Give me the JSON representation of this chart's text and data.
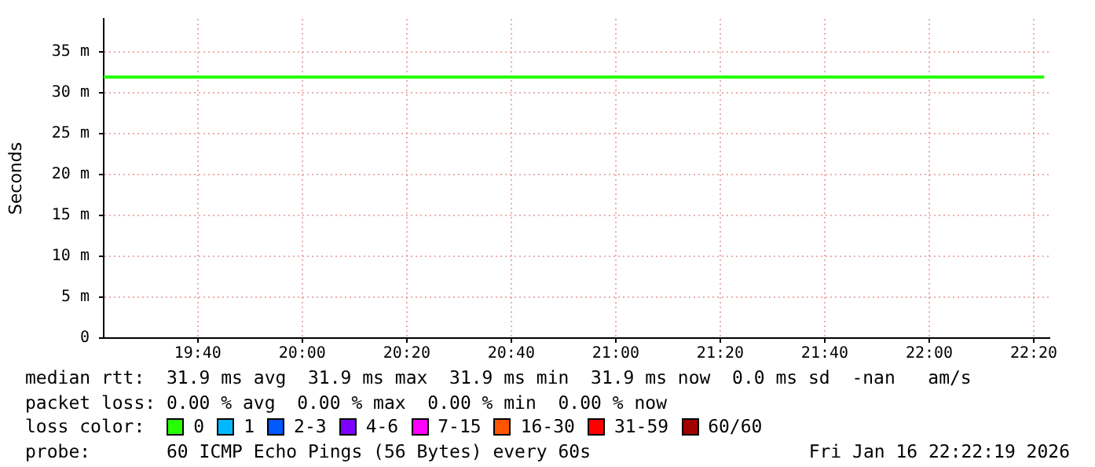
{
  "chart_data": {
    "type": "line",
    "ylabel": "Seconds",
    "legend_title": "loss color:",
    "legend": "bottom",
    "grid": true,
    "marker": "none",
    "line_style": "solid",
    "x": [
      "2026-01-16T19:22",
      "2026-01-16T22:22"
    ],
    "xlim": [
      "2026-01-16T19:22",
      "2026-01-16T22:23"
    ],
    "xticks": [
      {
        "value": "2026-01-16T19:40",
        "label": "19:40"
      },
      {
        "value": "2026-01-16T20:00",
        "label": "20:00"
      },
      {
        "value": "2026-01-16T20:20",
        "label": "20:20"
      },
      {
        "value": "2026-01-16T20:40",
        "label": "20:40"
      },
      {
        "value": "2026-01-16T21:00",
        "label": "21:00"
      },
      {
        "value": "2026-01-16T21:20",
        "label": "21:20"
      },
      {
        "value": "2026-01-16T21:40",
        "label": "21:40"
      },
      {
        "value": "2026-01-16T22:00",
        "label": "22:00"
      },
      {
        "value": "2026-01-16T22:20",
        "label": "22:20"
      }
    ],
    "ylim": [
      0,
      39
    ],
    "yticks": [
      0,
      {
        "value": 5,
        "label": "5 m"
      },
      {
        "value": 10,
        "label": "10 m"
      },
      {
        "value": 15,
        "label": "15 m"
      },
      {
        "value": 20,
        "label": "20 m"
      },
      {
        "value": 25,
        "label": "25 m"
      },
      {
        "value": 30,
        "label": "30 m"
      },
      {
        "value": 35,
        "label": "35 m"
      }
    ],
    "series": [
      {
        "name": "0",
        "color": "#26ff00",
        "values": [
          31.9,
          31.9
        ]
      },
      {
        "name": "1",
        "color": "#00b8ff",
        "values": [
          null,
          null
        ]
      },
      {
        "name": "2-3",
        "color": "#0059ff",
        "values": [
          null,
          null
        ]
      },
      {
        "name": "4-6",
        "color": "#7e00ff",
        "values": [
          null,
          null
        ]
      },
      {
        "name": "7-15",
        "color": "#ff00ff",
        "values": [
          null,
          null
        ]
      },
      {
        "name": "16-30",
        "color": "#ff5500",
        "values": [
          null,
          null
        ]
      },
      {
        "name": "31-59",
        "color": "#ff0000",
        "values": [
          null,
          null
        ]
      },
      {
        "name": "60/60",
        "color": "#a10000",
        "values": [
          null,
          null
        ]
      }
    ],
    "annotations": [
      "median rtt:  31.9 ms avg  31.9 ms max  31.9 ms min  31.9 ms now  0.0 ms sd  -nan   am/s",
      "packet loss: 0.00 % avg  0.00 % max  0.00 % min  0.00 % now",
      "probe:       60 ICMP Echo Pings (56 Bytes) every 60s",
      "Fri Jan 16 22:22:19 2026"
    ]
  }
}
